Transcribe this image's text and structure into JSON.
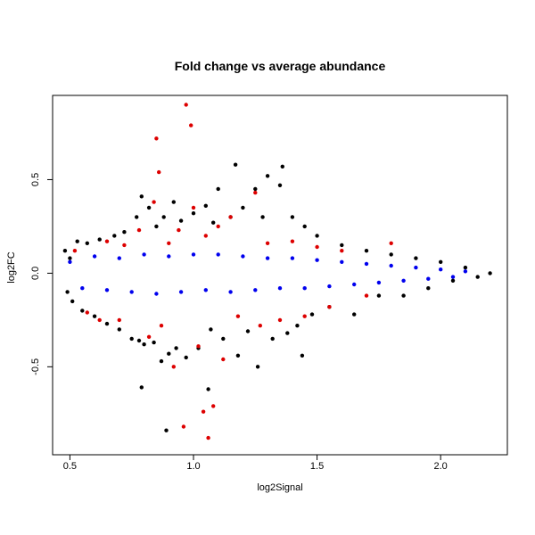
{
  "chart_data": {
    "type": "scatter",
    "title": "Fold change vs average abundance",
    "xlabel": "log2Signal",
    "ylabel": "log2FC",
    "xlim": [
      0.43,
      2.27
    ],
    "ylim": [
      -0.97,
      0.95
    ],
    "x_ticks": [
      0.5,
      1.0,
      1.5,
      2.0
    ],
    "x_tick_labels": [
      "0.5",
      "1.0",
      "1.5",
      "2.0"
    ],
    "y_ticks": [
      -0.5,
      0.0,
      0.5
    ],
    "y_tick_labels": [
      "-0.5",
      "0.0",
      "0.5"
    ],
    "grid": false,
    "legend": "none",
    "colors": {
      "background_points": "#000000",
      "highlight_a": "#0000ee",
      "highlight_b": "#dd0000"
    },
    "series": [
      {
        "color": "#000000",
        "points": [
          [
            0.48,
            0.12
          ],
          [
            0.49,
            -0.1
          ],
          [
            0.5,
            0.08
          ],
          [
            0.51,
            -0.15
          ],
          [
            0.53,
            0.17
          ],
          [
            0.55,
            -0.2
          ],
          [
            0.57,
            0.16
          ],
          [
            0.6,
            -0.23
          ],
          [
            0.62,
            0.18
          ],
          [
            0.65,
            -0.27
          ],
          [
            0.68,
            0.2
          ],
          [
            0.7,
            -0.3
          ],
          [
            0.72,
            0.22
          ],
          [
            0.75,
            -0.35
          ],
          [
            0.77,
            0.3
          ],
          [
            0.78,
            -0.36
          ],
          [
            0.79,
            0.41
          ],
          [
            0.79,
            -0.61
          ],
          [
            0.8,
            -0.38
          ],
          [
            0.82,
            0.35
          ],
          [
            0.84,
            -0.37
          ],
          [
            0.85,
            0.25
          ],
          [
            0.87,
            -0.47
          ],
          [
            0.88,
            0.3
          ],
          [
            0.89,
            -0.84
          ],
          [
            0.9,
            -0.43
          ],
          [
            0.92,
            0.38
          ],
          [
            0.93,
            -0.4
          ],
          [
            0.95,
            0.28
          ],
          [
            0.97,
            -0.45
          ],
          [
            1.0,
            0.32
          ],
          [
            1.02,
            -0.4
          ],
          [
            1.05,
            0.36
          ],
          [
            1.06,
            -0.62
          ],
          [
            1.07,
            -0.3
          ],
          [
            1.08,
            0.27
          ],
          [
            1.1,
            0.45
          ],
          [
            1.12,
            -0.35
          ],
          [
            1.15,
            0.3
          ],
          [
            1.17,
            0.58
          ],
          [
            1.18,
            -0.44
          ],
          [
            1.2,
            0.35
          ],
          [
            1.22,
            -0.31
          ],
          [
            1.25,
            0.45
          ],
          [
            1.26,
            -0.5
          ],
          [
            1.28,
            0.3
          ],
          [
            1.3,
            0.52
          ],
          [
            1.32,
            -0.35
          ],
          [
            1.35,
            0.47
          ],
          [
            1.36,
            0.57
          ],
          [
            1.38,
            -0.32
          ],
          [
            1.4,
            0.3
          ],
          [
            1.42,
            -0.28
          ],
          [
            1.44,
            -0.44
          ],
          [
            1.45,
            0.25
          ],
          [
            1.48,
            -0.22
          ],
          [
            1.5,
            0.2
          ],
          [
            1.55,
            -0.18
          ],
          [
            1.6,
            0.15
          ],
          [
            1.65,
            -0.22
          ],
          [
            1.7,
            0.12
          ],
          [
            1.75,
            -0.12
          ],
          [
            1.8,
            0.1
          ],
          [
            1.85,
            -0.12
          ],
          [
            1.9,
            0.08
          ],
          [
            1.95,
            -0.08
          ],
          [
            2.0,
            0.06
          ],
          [
            2.05,
            -0.04
          ],
          [
            2.1,
            0.03
          ],
          [
            2.15,
            -0.02
          ],
          [
            2.2,
            0.0
          ]
        ]
      },
      {
        "color": "#0000ee",
        "points": [
          [
            0.5,
            0.06
          ],
          [
            0.55,
            -0.08
          ],
          [
            0.6,
            0.09
          ],
          [
            0.65,
            -0.09
          ],
          [
            0.7,
            0.08
          ],
          [
            0.75,
            -0.1
          ],
          [
            0.8,
            0.1
          ],
          [
            0.85,
            -0.11
          ],
          [
            0.9,
            0.09
          ],
          [
            0.95,
            -0.1
          ],
          [
            1.0,
            0.1
          ],
          [
            1.05,
            -0.09
          ],
          [
            1.1,
            0.1
          ],
          [
            1.15,
            -0.1
          ],
          [
            1.2,
            0.09
          ],
          [
            1.25,
            -0.09
          ],
          [
            1.3,
            0.08
          ],
          [
            1.35,
            -0.08
          ],
          [
            1.4,
            0.08
          ],
          [
            1.45,
            -0.08
          ],
          [
            1.5,
            0.07
          ],
          [
            1.55,
            -0.07
          ],
          [
            1.6,
            0.06
          ],
          [
            1.65,
            -0.06
          ],
          [
            1.7,
            0.05
          ],
          [
            1.75,
            -0.05
          ],
          [
            1.8,
            0.04
          ],
          [
            1.85,
            -0.04
          ],
          [
            1.9,
            0.03
          ],
          [
            1.95,
            -0.03
          ],
          [
            2.0,
            0.02
          ],
          [
            2.05,
            -0.02
          ],
          [
            2.1,
            0.01
          ]
        ]
      },
      {
        "color": "#dd0000",
        "points": [
          [
            0.52,
            0.12
          ],
          [
            0.57,
            -0.21
          ],
          [
            0.62,
            -0.25
          ],
          [
            0.65,
            0.17
          ],
          [
            0.7,
            -0.25
          ],
          [
            0.72,
            0.15
          ],
          [
            0.78,
            0.23
          ],
          [
            0.82,
            -0.34
          ],
          [
            0.84,
            0.38
          ],
          [
            0.85,
            0.72
          ],
          [
            0.86,
            0.54
          ],
          [
            0.87,
            -0.28
          ],
          [
            0.9,
            0.16
          ],
          [
            0.92,
            -0.5
          ],
          [
            0.94,
            0.23
          ],
          [
            0.96,
            -0.82
          ],
          [
            0.97,
            0.9
          ],
          [
            0.99,
            0.79
          ],
          [
            1.0,
            0.35
          ],
          [
            1.02,
            -0.39
          ],
          [
            1.04,
            -0.74
          ],
          [
            1.05,
            0.2
          ],
          [
            1.06,
            -0.88
          ],
          [
            1.08,
            -0.71
          ],
          [
            1.1,
            0.25
          ],
          [
            1.12,
            -0.46
          ],
          [
            1.15,
            0.3
          ],
          [
            1.18,
            -0.23
          ],
          [
            1.25,
            0.43
          ],
          [
            1.27,
            -0.28
          ],
          [
            1.3,
            0.16
          ],
          [
            1.35,
            -0.25
          ],
          [
            1.4,
            0.17
          ],
          [
            1.45,
            -0.23
          ],
          [
            1.5,
            0.14
          ],
          [
            1.55,
            -0.18
          ],
          [
            1.6,
            0.12
          ],
          [
            1.7,
            -0.12
          ],
          [
            1.8,
            0.16
          ]
        ]
      }
    ]
  }
}
